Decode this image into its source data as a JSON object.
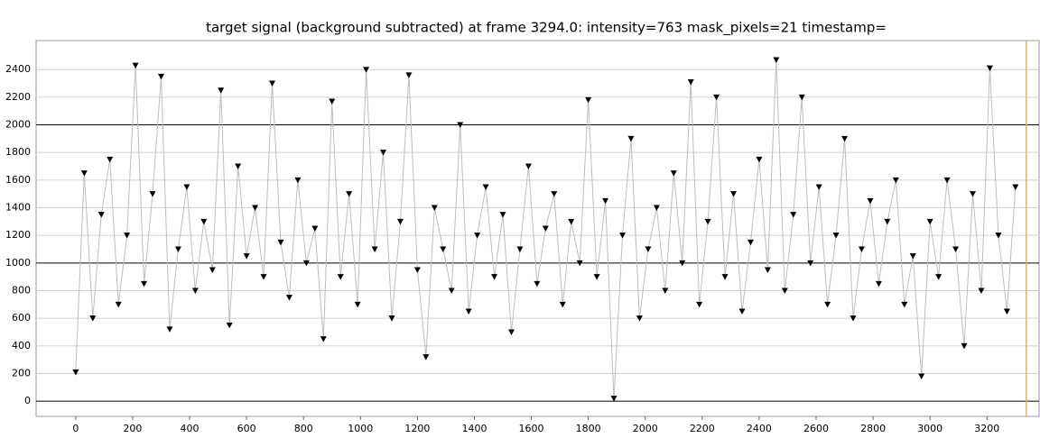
{
  "chart_data": {
    "type": "line",
    "title": "target signal (background subtracted) at frame 3294.0: intensity=763 mask_pixels=21 timestamp=",
    "x": [
      0,
      30,
      60,
      90,
      120,
      150,
      180,
      210,
      240,
      270,
      300,
      330,
      360,
      390,
      420,
      450,
      480,
      510,
      540,
      570,
      600,
      630,
      660,
      690,
      720,
      750,
      780,
      810,
      840,
      870,
      900,
      930,
      960,
      990,
      1020,
      1050,
      1080,
      1110,
      1140,
      1170,
      1200,
      1230,
      1260,
      1290,
      1320,
      1350,
      1380,
      1410,
      1440,
      1470,
      1500,
      1530,
      1560,
      1590,
      1620,
      1650,
      1680,
      1710,
      1740,
      1770,
      1800,
      1830,
      1860,
      1890,
      1920,
      1950,
      1980,
      2010,
      2040,
      2070,
      2100,
      2130,
      2160,
      2190,
      2220,
      2250,
      2280,
      2310,
      2340,
      2370,
      2400,
      2430,
      2460,
      2490,
      2520,
      2550,
      2580,
      2610,
      2640,
      2670,
      2700,
      2730,
      2760,
      2790,
      2820,
      2850,
      2880,
      2910,
      2940,
      2970,
      3000,
      3030,
      3060,
      3090,
      3120,
      3150,
      3180,
      3210,
      3240,
      3270,
      3300
    ],
    "series": [
      {
        "color": "#000000",
        "line_color": "#bdbdbd",
        "values": [
          210,
          1650,
          600,
          1350,
          1750,
          700,
          1200,
          2430,
          850,
          1500,
          2350,
          520,
          1100,
          1550,
          800,
          1300,
          950,
          2250,
          550,
          1700,
          1050,
          1400,
          900,
          2300,
          1150,
          750,
          1600,
          1000,
          1250,
          450,
          2170,
          900,
          1500,
          700,
          2400,
          1100,
          1800,
          600,
          1300,
          2360,
          950,
          320,
          1400,
          1100,
          800,
          2000,
          650,
          1200,
          1550,
          900,
          1350,
          500,
          1100,
          1700,
          850,
          1250,
          1500,
          700,
          1300,
          1000,
          2180,
          900,
          1450,
          20,
          1200,
          1900,
          600,
          1100,
          1400,
          800,
          1650,
          1000,
          2310,
          700,
          1300,
          2200,
          900,
          1500,
          650,
          1150,
          1750,
          950,
          2470,
          800,
          1350,
          2200,
          1000,
          1550,
          700,
          1200,
          1900,
          600,
          1100,
          1450,
          850,
          1300,
          1600,
          700,
          1050,
          180,
          1300,
          900,
          1600,
          1100,
          400,
          1500,
          800,
          2410,
          1200,
          650,
          1550
        ]
      }
    ],
    "xlim": [
      -139,
      3383
    ],
    "ylim": [
      -110,
      2610
    ],
    "xticks": [
      0,
      200,
      400,
      600,
      800,
      1000,
      1200,
      1400,
      1600,
      1800,
      2000,
      2200,
      2400,
      2600,
      2800,
      3000,
      3200
    ],
    "yticks": [
      0,
      200,
      400,
      600,
      800,
      1000,
      1200,
      1400,
      1600,
      1800,
      2000,
      2200,
      2400
    ],
    "major_yticks": [
      0,
      1000,
      2000
    ],
    "cursor_x": 3338,
    "cursor_color": "#d4b46a",
    "grid": true
  }
}
